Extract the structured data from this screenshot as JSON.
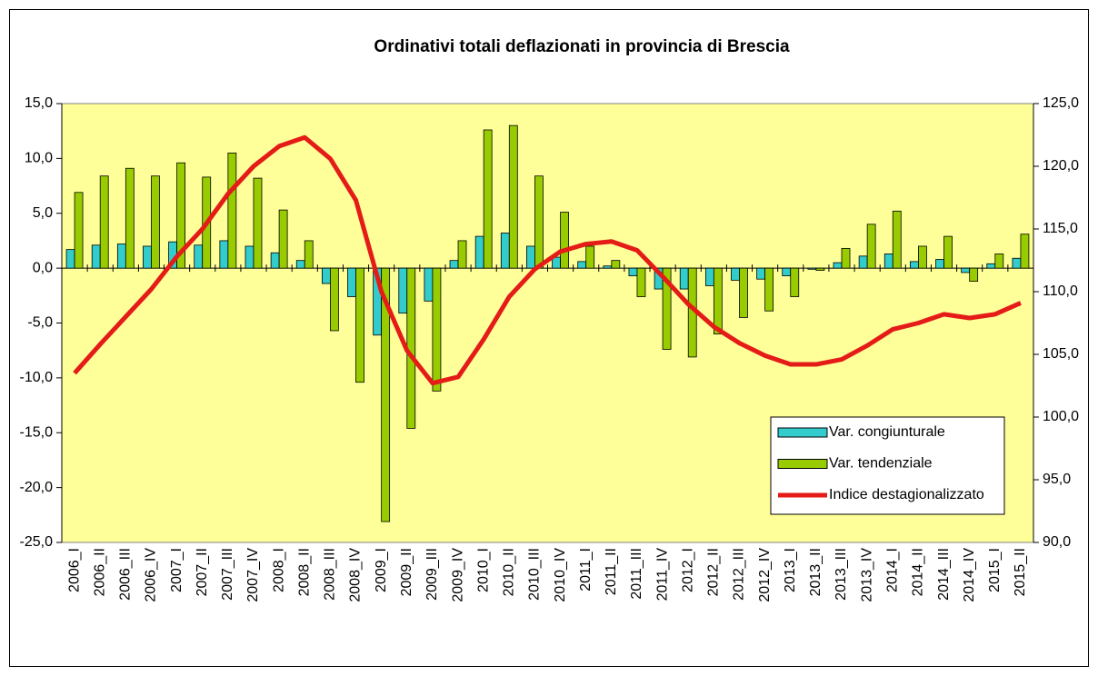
{
  "chart_data": {
    "type": "bar",
    "title": "Ordinativi totali deflazionati in provincia di Brescia",
    "categories": [
      "2006_I",
      "2006_II",
      "2006_III",
      "2006_IV",
      "2007_I",
      "2007_II",
      "2007_III",
      "2007_IV",
      "2008_I",
      "2008_II",
      "2008_III",
      "2008_IV",
      "2009_I",
      "2009_II",
      "2009_III",
      "2009_IV",
      "2010_I",
      "2010_II",
      "2010_III",
      "2010_IV",
      "2011_I",
      "2011_II",
      "2011_III",
      "2011_IV",
      "2012_I",
      "2012_II",
      "2012_III",
      "2012_IV",
      "2013_I",
      "2013_II",
      "2013_III",
      "2013_IV",
      "2014_I",
      "2014_II",
      "2014_III",
      "2014_IV",
      "2015_I",
      "2015_II"
    ],
    "series": [
      {
        "name": "Var. congiunturale",
        "color": "#33CCCC",
        "values": [
          1.7,
          2.1,
          2.2,
          2.0,
          2.4,
          2.1,
          2.5,
          2.0,
          1.4,
          0.7,
          -1.4,
          -2.6,
          -6.1,
          -4.1,
          -3.0,
          0.7,
          2.9,
          3.2,
          2.0,
          1.0,
          0.6,
          0.2,
          -0.7,
          -1.9,
          -1.9,
          -1.6,
          -1.1,
          -1.0,
          -0.7,
          -0.1,
          0.5,
          1.1,
          1.3,
          0.6,
          0.8,
          -0.4,
          0.4,
          0.9
        ]
      },
      {
        "name": "Var. tendenziale",
        "color": "#99CC00",
        "values": [
          6.9,
          8.4,
          9.1,
          8.4,
          9.6,
          8.3,
          10.5,
          8.2,
          5.3,
          2.5,
          -5.7,
          -10.4,
          -23.1,
          -14.6,
          -11.2,
          2.5,
          12.6,
          13.0,
          8.4,
          5.1,
          2.0,
          0.7,
          -2.6,
          -7.4,
          -8.1,
          -6.0,
          -4.5,
          -3.9,
          -2.6,
          -0.2,
          1.8,
          4.0,
          5.2,
          2.0,
          2.9,
          -1.2,
          1.3,
          3.1
        ]
      },
      {
        "name": "Indice destagionalizzato",
        "color": "#E41B17",
        "type": "line",
        "axis": "y2",
        "values": [
          103.5,
          105.8,
          108.0,
          110.2,
          112.8,
          115.0,
          117.8,
          120.0,
          121.6,
          122.3,
          120.6,
          117.3,
          110.0,
          105.3,
          102.7,
          103.2,
          106.2,
          109.6,
          111.8,
          113.2,
          113.8,
          114.0,
          113.3,
          111.2,
          109.0,
          107.2,
          105.9,
          104.9,
          104.2,
          104.2,
          104.6,
          105.7,
          107.0,
          107.5,
          108.2,
          107.9,
          108.2,
          109.1
        ]
      }
    ],
    "ylim": [
      -25,
      15
    ],
    "yticks": [
      {
        "value": -25,
        "label": "-25,0"
      },
      {
        "value": -20,
        "label": "-20,0"
      },
      {
        "value": -15,
        "label": "-15,0"
      },
      {
        "value": -10,
        "label": "-10,0"
      },
      {
        "value": -5,
        "label": "-5,0"
      },
      {
        "value": 0,
        "label": "0,0"
      },
      {
        "value": 5,
        "label": "5,0"
      },
      {
        "value": 10,
        "label": "10,0"
      },
      {
        "value": 15,
        "label": "15,0"
      }
    ],
    "y2lim": [
      90,
      125
    ],
    "y2ticks": [
      {
        "value": 90,
        "label": "90,0"
      },
      {
        "value": 95,
        "label": "95,0"
      },
      {
        "value": 100,
        "label": "100,0"
      },
      {
        "value": 105,
        "label": "105,0"
      },
      {
        "value": 110,
        "label": "110,0"
      },
      {
        "value": 115,
        "label": "115,0"
      },
      {
        "value": 120,
        "label": "120,0"
      },
      {
        "value": 125,
        "label": "125,0"
      }
    ],
    "plot_background": "#FFFF99",
    "legend": "lower right"
  }
}
